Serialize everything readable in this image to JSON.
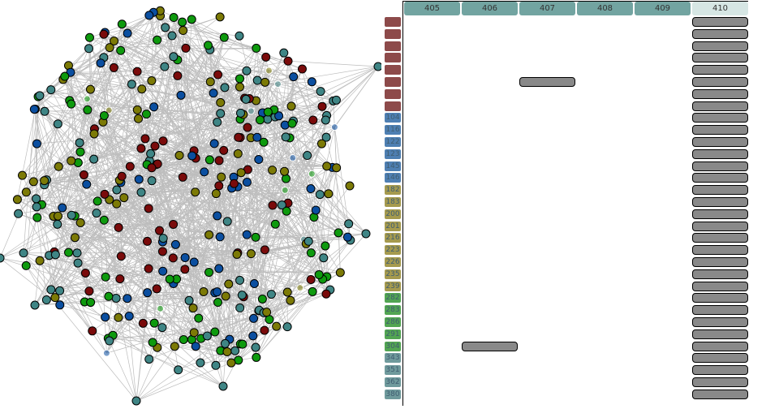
{
  "colors": {
    "edge": "#bdbdbd",
    "cell_fill": "#898989",
    "header_fill": "#72a4a1",
    "header_active_fill": "#d6e6e4"
  },
  "node_groups": [
    {
      "name": "red",
      "color": "#7a0b0b"
    },
    {
      "name": "blue",
      "color": "#0b4fa0"
    },
    {
      "name": "olive",
      "color": "#7c7a06"
    },
    {
      "name": "green",
      "color": "#0e9a0e"
    },
    {
      "name": "teal",
      "color": "#3f8585"
    }
  ],
  "columns": [
    {
      "label": "405",
      "active": false
    },
    {
      "label": "406",
      "active": false
    },
    {
      "label": "407",
      "active": false
    },
    {
      "label": "408",
      "active": false
    },
    {
      "label": "409",
      "active": false
    },
    {
      "label": "410",
      "active": true
    }
  ],
  "rows": [
    {
      "label": "",
      "color": "#8d4a4a"
    },
    {
      "label": "",
      "color": "#8d4a4a"
    },
    {
      "label": "",
      "color": "#8d4a4a"
    },
    {
      "label": "",
      "color": "#8d4a4a"
    },
    {
      "label": "",
      "color": "#8d4a4a"
    },
    {
      "label": "",
      "color": "#8d4a4a"
    },
    {
      "label": "",
      "color": "#8d4a4a"
    },
    {
      "label": "",
      "color": "#8d4a4a"
    },
    {
      "label": "104",
      "color": "#4e7fb2"
    },
    {
      "label": "116",
      "color": "#4e7fb2"
    },
    {
      "label": "122",
      "color": "#4e7fb2"
    },
    {
      "label": "123",
      "color": "#4e7fb2"
    },
    {
      "label": "145",
      "color": "#4e7fb2"
    },
    {
      "label": "146",
      "color": "#4e7fb2"
    },
    {
      "label": "182",
      "color": "#a59a4e"
    },
    {
      "label": "183",
      "color": "#a59a4e"
    },
    {
      "label": "200",
      "color": "#a59a4e"
    },
    {
      "label": "201",
      "color": "#a59a4e"
    },
    {
      "label": "216",
      "color": "#a59a4e"
    },
    {
      "label": "223",
      "color": "#a59a4e"
    },
    {
      "label": "226",
      "color": "#a59a4e"
    },
    {
      "label": "235",
      "color": "#a59a4e"
    },
    {
      "label": "239",
      "color": "#a59a4e"
    },
    {
      "label": "282",
      "color": "#52a552"
    },
    {
      "label": "283",
      "color": "#52a552"
    },
    {
      "label": "286",
      "color": "#52a552"
    },
    {
      "label": "291",
      "color": "#52a552"
    },
    {
      "label": "304",
      "color": "#52a552"
    },
    {
      "label": "343",
      "color": "#6f9a9c"
    },
    {
      "label": "351",
      "color": "#6f9a9c"
    },
    {
      "label": "362",
      "color": "#6f9a9c"
    },
    {
      "label": "380",
      "color": "#6f9a9c"
    }
  ],
  "filled_cells": [
    {
      "row": 5,
      "col": 2
    },
    {
      "row": 27,
      "col": 1
    }
  ],
  "full_column": 5
}
